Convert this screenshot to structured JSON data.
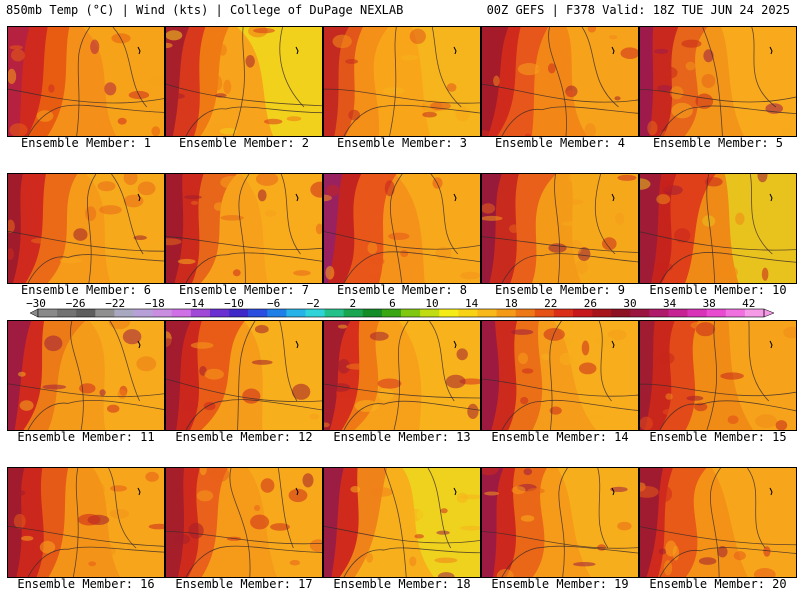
{
  "header": {
    "left": "850mb Temp (°C) | Wind (kts) | College of DuPage NEXLAB",
    "right": "00Z GEFS | F378 Valid: 18Z TUE JUN 24 2025"
  },
  "panel_label_prefix": "Ensemble Member: ",
  "members": [
    {
      "label": "Ensemble Member: 1",
      "palette": [
        "#b5213e",
        "#d02a1f",
        "#e85c12",
        "#f4901a",
        "#f6a31a"
      ]
    },
    {
      "label": "Ensemble Member: 2",
      "palette": [
        "#a81f2c",
        "#d8381b",
        "#ef7a14",
        "#f8a31c",
        "#f2d11d"
      ]
    },
    {
      "label": "Ensemble Member: 3",
      "palette": [
        "#c42a1f",
        "#e2561a",
        "#f48f18",
        "#f8a51a",
        "#f6b51c"
      ]
    },
    {
      "label": "Ensemble Member: 4",
      "palette": [
        "#a51b2a",
        "#cf2a1c",
        "#e7561a",
        "#f28717",
        "#f6a21b"
      ]
    },
    {
      "label": "Ensemble Member: 5",
      "palette": [
        "#9e1a4a",
        "#c8281d",
        "#e6651a",
        "#f39518",
        "#f8a91c"
      ]
    },
    {
      "label": "Ensemble Member: 6",
      "palette": [
        "#a01b2c",
        "#cf2a1d",
        "#ea6a17",
        "#f59a19",
        "#f7a91c"
      ]
    },
    {
      "label": "Ensemble Member: 7",
      "palette": [
        "#a11b2c",
        "#cc2a1d",
        "#e8661a",
        "#f6a01b",
        "#f8ac1c"
      ]
    },
    {
      "label": "Ensemble Member: 8",
      "palette": [
        "#9a2160",
        "#c4241f",
        "#e8561a",
        "#f4921a",
        "#f7a81b"
      ]
    },
    {
      "label": "Ensemble Member: 9",
      "palette": [
        "#981a3a",
        "#c82a1e",
        "#e8601a",
        "#f49a19",
        "#f6a81b"
      ]
    },
    {
      "label": "Ensemble Member: 10",
      "palette": [
        "#a01c36",
        "#c6231c",
        "#df401a",
        "#f08a16",
        "#e8c21d"
      ]
    },
    {
      "label": "Ensemble Member: 11",
      "palette": [
        "#9f1b40",
        "#cf2a1d",
        "#ec7a16",
        "#f59b1a",
        "#f7ab1c"
      ]
    },
    {
      "label": "Ensemble Member: 12",
      "palette": [
        "#a31b2e",
        "#cb271d",
        "#e95c18",
        "#f59c1a",
        "#f8af1c"
      ]
    },
    {
      "label": "Ensemble Member: 13",
      "palette": [
        "#a31d2f",
        "#d6301c",
        "#ef7a15",
        "#f7a11b",
        "#f8b21c"
      ]
    },
    {
      "label": "Ensemble Member: 14",
      "palette": [
        "#9c1a40",
        "#cc2a1d",
        "#ea6f17",
        "#f59c1a",
        "#f7ad1c"
      ]
    },
    {
      "label": "Ensemble Member: 15",
      "palette": [
        "#a01c30",
        "#c9261c",
        "#e24a19",
        "#f08b16",
        "#f6a31b"
      ]
    },
    {
      "label": "Ensemble Member: 16",
      "palette": [
        "#a11b2e",
        "#cc271c",
        "#e65a18",
        "#f39318",
        "#f7a61b"
      ]
    },
    {
      "label": "Ensemble Member: 17",
      "palette": [
        "#a51e2a",
        "#cf2b1c",
        "#e9611a",
        "#f59a19",
        "#f7a91b"
      ]
    },
    {
      "label": "Ensemble Member: 18",
      "palette": [
        "#9c1d44",
        "#cf2a1c",
        "#f0821a",
        "#f7b01c",
        "#eed21d"
      ]
    },
    {
      "label": "Ensemble Member: 19",
      "palette": [
        "#9d1b42",
        "#cd281d",
        "#ea6717",
        "#f59a19",
        "#f7ae1c"
      ]
    },
    {
      "label": "Ensemble Member: 20",
      "palette": [
        "#a11b30",
        "#cf2a1d",
        "#e85a18",
        "#f49217",
        "#f7a61b"
      ]
    }
  ],
  "colorbar": {
    "tick_labels": [
      "−30",
      "−26",
      "−22",
      "−18",
      "−14",
      "−10",
      "−6",
      "−2",
      "2",
      "6",
      "10",
      "14",
      "18",
      "22",
      "26",
      "30",
      "34",
      "38",
      "42"
    ],
    "colors": [
      "#8a8a8a",
      "#727272",
      "#5e5e5e",
      "#8f8f8f",
      "#a8a8c0",
      "#b7a0d8",
      "#c98ee0",
      "#d070e6",
      "#a048d8",
      "#6a2fd0",
      "#3f28c8",
      "#2a4ee0",
      "#1e7fe6",
      "#27b2e8",
      "#2fd4d8",
      "#24c28a",
      "#1aa650",
      "#148c28",
      "#3aa614",
      "#7fc80f",
      "#c0dc12",
      "#f4ec14",
      "#f8d214",
      "#f8b81a",
      "#f59a16",
      "#ef7816",
      "#e65216",
      "#db2e18",
      "#c6181c",
      "#a8141c",
      "#8c1224",
      "#9a1640",
      "#b01a6a",
      "#c62294",
      "#d832b8",
      "#e84ad0",
      "#f070e0",
      "#f49ae6"
    ]
  }
}
